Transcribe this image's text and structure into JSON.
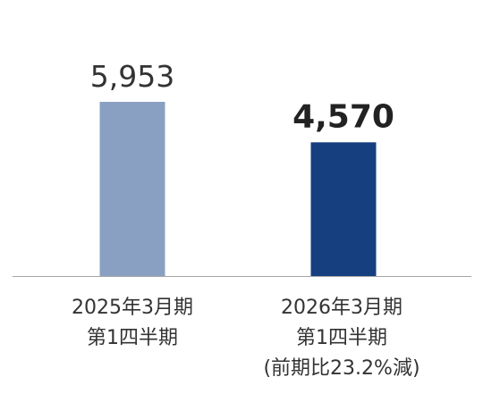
{
  "chart_data": {
    "type": "bar",
    "title": "",
    "xlabel": "",
    "ylabel": "",
    "ylim": [
      0,
      6200
    ],
    "grid": false,
    "legend": "none",
    "categories": [
      [
        "2025年3月期",
        "第1四半期"
      ],
      [
        "2026年3月期",
        "第1四半期",
        "(前期比23.2%減)"
      ]
    ],
    "values": [
      5953,
      4570
    ],
    "value_labels": [
      "5,953",
      "4,570"
    ],
    "bar_colors": [
      "#8aa0c2",
      "#163f80"
    ],
    "value_label_styles": [
      "normal",
      "bold"
    ]
  },
  "colors": {
    "baseline": "#a6a6a6",
    "text": "#333333"
  }
}
